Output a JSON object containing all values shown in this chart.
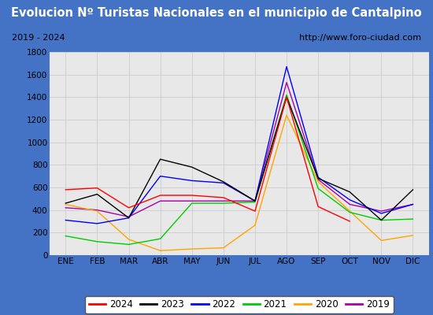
{
  "title": "Evolucion Nº Turistas Nacionales en el municipio de Cantalpino",
  "subtitle_left": "2019 - 2024",
  "subtitle_right": "http://www.foro-ciudad.com",
  "months": [
    "ENE",
    "FEB",
    "MAR",
    "ABR",
    "MAY",
    "JUN",
    "JUL",
    "AGO",
    "SEP",
    "OCT",
    "NOV",
    "DIC"
  ],
  "ylim": [
    0,
    1800
  ],
  "yticks": [
    0,
    200,
    400,
    600,
    800,
    1000,
    1200,
    1400,
    1600,
    1800
  ],
  "series": {
    "2024": {
      "color": "#ff0000",
      "data": [
        580,
        595,
        420,
        530,
        530,
        510,
        390,
        1400,
        430,
        300,
        null,
        null
      ]
    },
    "2023": {
      "color": "#000000",
      "data": [
        460,
        540,
        330,
        850,
        780,
        650,
        480,
        1400,
        680,
        560,
        310,
        580
      ]
    },
    "2022": {
      "color": "#0000ff",
      "data": [
        310,
        280,
        330,
        700,
        660,
        640,
        480,
        1670,
        690,
        490,
        370,
        450
      ]
    },
    "2021": {
      "color": "#00cc00",
      "data": [
        170,
        120,
        95,
        145,
        460,
        460,
        470,
        1420,
        590,
        380,
        310,
        320
      ]
    },
    "2020": {
      "color": "#ffa500",
      "data": [
        450,
        390,
        140,
        40,
        55,
        65,
        265,
        1240,
        650,
        390,
        130,
        175
      ]
    },
    "2019": {
      "color": "#aa00aa",
      "data": [
        420,
        400,
        340,
        480,
        480,
        480,
        480,
        1530,
        670,
        450,
        390,
        450
      ]
    }
  },
  "title_bgcolor": "#4472c4",
  "title_fgcolor": "#ffffff",
  "subtitle_bgcolor": "#e8e8e8",
  "plot_bgcolor": "#e8e8e8",
  "outer_bgcolor": "#4472c4",
  "grid_color": "#cccccc",
  "legend_order": [
    "2024",
    "2023",
    "2022",
    "2021",
    "2020",
    "2019"
  ],
  "title_fontsize": 10.5,
  "subtitle_fontsize": 8,
  "tick_fontsize": 7.5,
  "legend_fontsize": 8.5
}
